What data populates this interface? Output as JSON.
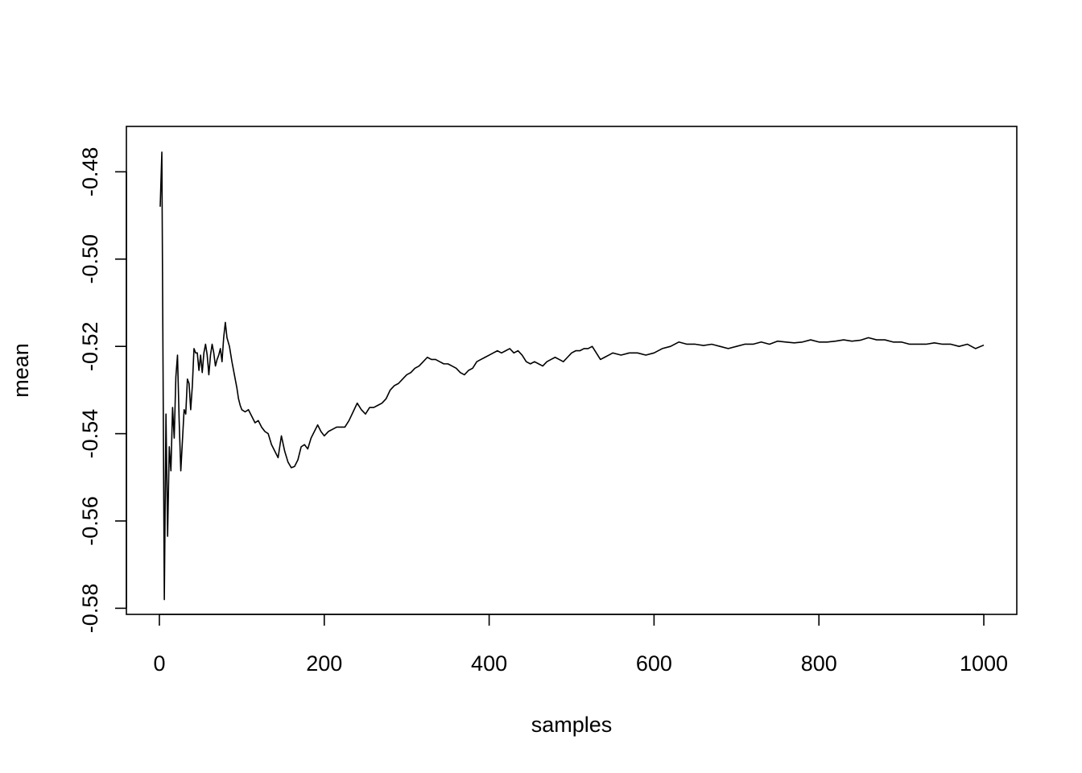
{
  "chart_data": {
    "type": "line",
    "title": "",
    "xlabel": "samples",
    "ylabel": "mean",
    "xlim": [
      -40,
      1040
    ],
    "ylim": [
      -0.5814,
      -0.4696
    ],
    "grid": false,
    "x_ticks": [
      0,
      200,
      400,
      600,
      800,
      1000
    ],
    "x_tick_labels": [
      "0",
      "200",
      "400",
      "600",
      "800",
      "1000"
    ],
    "y_ticks": [
      -0.48,
      -0.5,
      -0.52,
      -0.54,
      -0.56,
      -0.58
    ],
    "y_tick_labels": [
      "-0.48",
      "-0.50",
      "-0.52",
      "-0.54",
      "-0.56",
      "-0.58"
    ],
    "series": [
      {
        "color": "#000000",
        "x": [
          1,
          3,
          6,
          8,
          10,
          12,
          14,
          16,
          18,
          20,
          22,
          24,
          26,
          28,
          30,
          32,
          34,
          36,
          38,
          40,
          42,
          44,
          46,
          48,
          50,
          52,
          54,
          56,
          58,
          60,
          62,
          64,
          66,
          68,
          70,
          72,
          74,
          76,
          78,
          80,
          82,
          85,
          88,
          91,
          94,
          96,
          98,
          100,
          104,
          108,
          112,
          116,
          120,
          124,
          128,
          132,
          136,
          140,
          144,
          148,
          152,
          156,
          160,
          164,
          168,
          172,
          176,
          180,
          184,
          188,
          192,
          196,
          200,
          205,
          210,
          215,
          220,
          225,
          230,
          235,
          240,
          245,
          250,
          255,
          260,
          265,
          270,
          275,
          280,
          285,
          290,
          295,
          300,
          305,
          310,
          315,
          320,
          325,
          330,
          335,
          340,
          345,
          350,
          355,
          360,
          365,
          370,
          375,
          380,
          385,
          390,
          395,
          400,
          405,
          410,
          415,
          420,
          425,
          430,
          435,
          440,
          445,
          450,
          455,
          460,
          465,
          470,
          475,
          480,
          485,
          490,
          495,
          500,
          505,
          510,
          515,
          520,
          525,
          530,
          535,
          540,
          545,
          550,
          560,
          570,
          580,
          590,
          600,
          610,
          620,
          630,
          640,
          650,
          660,
          670,
          680,
          690,
          700,
          710,
          720,
          730,
          740,
          750,
          760,
          770,
          780,
          790,
          800,
          810,
          820,
          830,
          840,
          850,
          860,
          870,
          880,
          890,
          900,
          910,
          920,
          930,
          940,
          950,
          960,
          970,
          980,
          990,
          1000
        ],
        "values": [
          -0.488,
          -0.4755,
          -0.578,
          -0.5355,
          -0.5635,
          -0.543,
          -0.5485,
          -0.534,
          -0.541,
          -0.527,
          -0.522,
          -0.537,
          -0.5485,
          -0.5415,
          -0.5345,
          -0.5355,
          -0.5275,
          -0.5285,
          -0.5345,
          -0.529,
          -0.5205,
          -0.5215,
          -0.5215,
          -0.5255,
          -0.522,
          -0.526,
          -0.5215,
          -0.5195,
          -0.522,
          -0.5265,
          -0.522,
          -0.5195,
          -0.5215,
          -0.5245,
          -0.523,
          -0.522,
          -0.5205,
          -0.5235,
          -0.518,
          -0.5145,
          -0.518,
          -0.52,
          -0.5235,
          -0.5265,
          -0.5295,
          -0.532,
          -0.5335,
          -0.5345,
          -0.535,
          -0.5345,
          -0.536,
          -0.5375,
          -0.537,
          -0.5385,
          -0.5395,
          -0.54,
          -0.5425,
          -0.544,
          -0.5455,
          -0.5405,
          -0.544,
          -0.5465,
          -0.5478,
          -0.5475,
          -0.546,
          -0.543,
          -0.5425,
          -0.5435,
          -0.541,
          -0.5395,
          -0.538,
          -0.5395,
          -0.5405,
          -0.5395,
          -0.539,
          -0.5385,
          -0.5385,
          -0.5385,
          -0.537,
          -0.535,
          -0.533,
          -0.5345,
          -0.5355,
          -0.534,
          -0.534,
          -0.5335,
          -0.533,
          -0.532,
          -0.53,
          -0.529,
          -0.5285,
          -0.5275,
          -0.5265,
          -0.526,
          -0.525,
          -0.5245,
          -0.5235,
          -0.5225,
          -0.523,
          -0.523,
          -0.5235,
          -0.524,
          -0.524,
          -0.5245,
          -0.525,
          -0.526,
          -0.5265,
          -0.5255,
          -0.525,
          -0.5235,
          -0.523,
          -0.5225,
          -0.522,
          -0.5215,
          -0.521,
          -0.5215,
          -0.521,
          -0.5205,
          -0.5215,
          -0.521,
          -0.522,
          -0.5235,
          -0.524,
          -0.5235,
          -0.524,
          -0.5245,
          -0.5235,
          -0.523,
          -0.5225,
          -0.523,
          -0.5235,
          -0.5225,
          -0.5215,
          -0.521,
          -0.521,
          -0.5205,
          -0.5205,
          -0.52,
          -0.5215,
          -0.523,
          -0.5225,
          -0.522,
          -0.5215,
          -0.522,
          -0.5215,
          -0.5215,
          -0.522,
          -0.5215,
          -0.5205,
          -0.52,
          -0.519,
          -0.5195,
          -0.5195,
          -0.5198,
          -0.5195,
          -0.52,
          -0.5205,
          -0.52,
          -0.5195,
          -0.5195,
          -0.519,
          -0.5195,
          -0.5188,
          -0.519,
          -0.5192,
          -0.519,
          -0.5185,
          -0.519,
          -0.519,
          -0.5188,
          -0.5185,
          -0.5188,
          -0.5186,
          -0.518,
          -0.5185,
          -0.5185,
          -0.519,
          -0.519,
          -0.5195,
          -0.5195,
          -0.5195,
          -0.5192,
          -0.5195,
          -0.5195,
          -0.52,
          -0.5195,
          -0.5205,
          -0.5197
        ]
      }
    ]
  }
}
